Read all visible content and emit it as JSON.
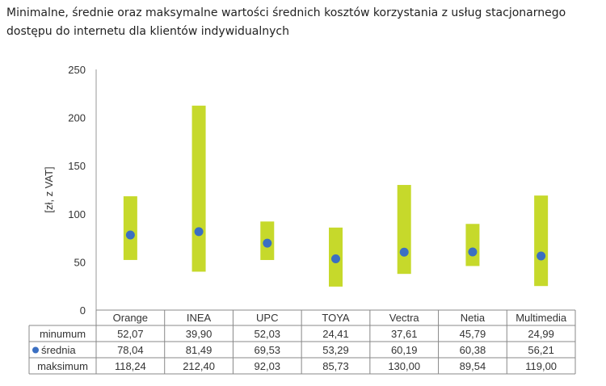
{
  "chart_data": {
    "type": "range",
    "title": "Minimalne, średnie oraz maksymalne wartości średnich kosztów korzystania z usług stacjonarnego dostępu do internetu dla klientów indywidualnych",
    "ylabel": "[zł, z VAT]",
    "ylim": [
      0,
      250
    ],
    "yticks": [
      0,
      50,
      100,
      150,
      200,
      250
    ],
    "categories": [
      "Orange",
      "INEA",
      "UPC",
      "TOYA",
      "Vectra",
      "Netia",
      "Multimedia"
    ],
    "series": [
      {
        "name": "minumum",
        "values": [
          52.07,
          39.9,
          52.03,
          24.41,
          37.61,
          45.79,
          24.99
        ],
        "labels": [
          "52,07",
          "39,90",
          "52,03",
          "24,41",
          "37,61",
          "45,79",
          "24,99"
        ]
      },
      {
        "name": "średnia",
        "values": [
          78.04,
          81.49,
          69.53,
          53.29,
          60.19,
          60.38,
          56.21
        ],
        "labels": [
          "78,04",
          "81,49",
          "69,53",
          "53,29",
          "60,19",
          "60,38",
          "56,21"
        ]
      },
      {
        "name": "maksimum",
        "values": [
          118.24,
          212.4,
          92.03,
          85.73,
          130.0,
          89.54,
          119.0
        ],
        "labels": [
          "118,24",
          "212,40",
          "92,03",
          "85,73",
          "130,00",
          "89,54",
          "119,00"
        ]
      }
    ],
    "colors": {
      "range_bar": "#c6d92b",
      "mean_marker": "#3b6fc2"
    },
    "grid": false
  }
}
